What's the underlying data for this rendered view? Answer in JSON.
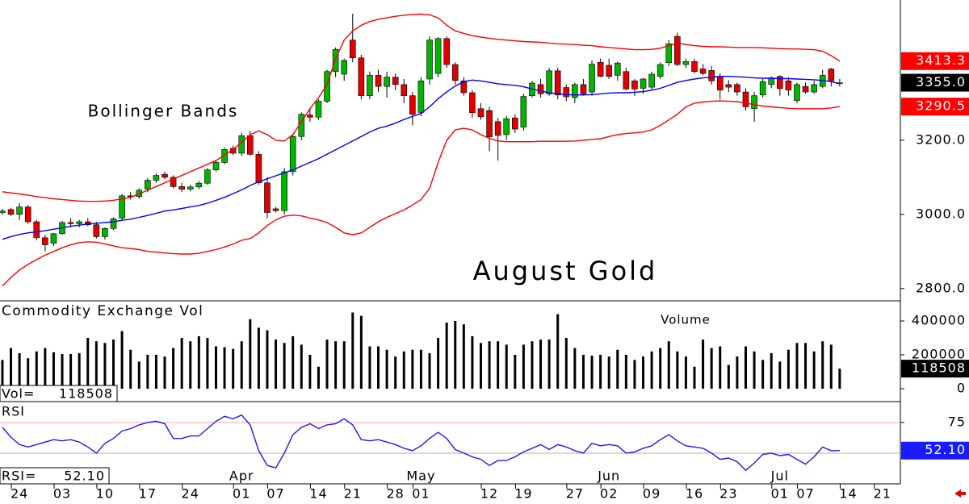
{
  "chart_data": [
    {
      "type": "candlestick",
      "title": "August Gold",
      "annotation": "Bollinger Bands",
      "up_color": "#00b400",
      "down_color": "#e00000",
      "open": [
        3005,
        3013,
        3000,
        3020,
        2980,
        2937,
        2922,
        2948,
        2978,
        2975,
        2980,
        2972,
        2940,
        2962,
        2990,
        3050,
        3048,
        3068,
        3092,
        3108,
        3100,
        3075,
        3068,
        3074,
        3084,
        3120,
        3140,
        3178,
        3165,
        3212,
        3162,
        3085,
        3015,
        3010,
        3115,
        3210,
        3268,
        3262,
        3305,
        3385,
        3378,
        3470,
        3422,
        3320,
        3375,
        3345,
        3370,
        3350,
        3320,
        3275,
        3365,
        3380,
        3474,
        3404,
        3360,
        3328,
        3285,
        3280,
        3250,
        3215,
        3260,
        3235,
        3320,
        3350,
        3325,
        3387,
        3342,
        3315,
        3350,
        3330,
        3410,
        3402,
        3375,
        3385,
        3360,
        3340,
        3343,
        3372,
        3409,
        3480,
        3404,
        3412,
        3392,
        3388,
        3372,
        3350,
        3350,
        3330,
        3285,
        3322,
        3350,
        3372,
        3360,
        3307,
        3345,
        3330,
        3345,
        3392,
        3355
      ],
      "high": [
        3015,
        3018,
        3030,
        3025,
        2985,
        2945,
        2950,
        2982,
        2990,
        2985,
        2990,
        2980,
        2965,
        2992,
        3055,
        3060,
        3070,
        3098,
        3110,
        3115,
        3105,
        3085,
        3080,
        3090,
        3125,
        3145,
        3180,
        3185,
        3220,
        3225,
        3170,
        3100,
        3020,
        3125,
        3215,
        3275,
        3285,
        3310,
        3390,
        3450,
        3420,
        3541,
        3430,
        3385,
        3390,
        3385,
        3380,
        3365,
        3330,
        3370,
        3480,
        3478,
        3480,
        3410,
        3370,
        3335,
        3300,
        3290,
        3260,
        3265,
        3270,
        3325,
        3360,
        3365,
        3395,
        3395,
        3350,
        3355,
        3365,
        3415,
        3420,
        3420,
        3412,
        3395,
        3365,
        3368,
        3385,
        3410,
        3470,
        3490,
        3420,
        3420,
        3405,
        3400,
        3380,
        3362,
        3355,
        3340,
        3330,
        3365,
        3372,
        3375,
        3370,
        3355,
        3355,
        3360,
        3390,
        3395,
        3365
      ],
      "low": [
        2998,
        2996,
        2985,
        2975,
        2930,
        2900,
        2915,
        2945,
        2965,
        2965,
        2968,
        2935,
        2932,
        2958,
        2985,
        3040,
        3042,
        3060,
        3085,
        3095,
        3070,
        3060,
        3062,
        3068,
        3080,
        3115,
        3135,
        3160,
        3158,
        3158,
        3080,
        2990,
        3005,
        3000,
        3105,
        3200,
        3250,
        3255,
        3300,
        3370,
        3360,
        3410,
        3310,
        3310,
        3330,
        3315,
        3335,
        3300,
        3240,
        3265,
        3350,
        3370,
        3395,
        3350,
        3320,
        3260,
        3255,
        3170,
        3145,
        3200,
        3220,
        3225,
        3315,
        3315,
        3320,
        3310,
        3305,
        3300,
        3320,
        3320,
        3370,
        3365,
        3360,
        3335,
        3320,
        3325,
        3335,
        3365,
        3400,
        3400,
        3395,
        3380,
        3375,
        3350,
        3310,
        3330,
        3320,
        3280,
        3250,
        3315,
        3340,
        3320,
        3320,
        3300,
        3325,
        3325,
        3340,
        3345,
        3345
      ],
      "close": [
        3009,
        3000,
        3020,
        2980,
        2937,
        2918,
        2948,
        2978,
        2975,
        2980,
        2972,
        2940,
        2962,
        2988,
        3050,
        3048,
        3065,
        3092,
        3105,
        3100,
        3075,
        3068,
        3074,
        3084,
        3120,
        3140,
        3175,
        3165,
        3212,
        3162,
        3085,
        3005,
        3010,
        3115,
        3210,
        3270,
        3262,
        3305,
        3385,
        3445,
        3415,
        3422,
        3320,
        3375,
        3345,
        3370,
        3350,
        3320,
        3270,
        3360,
        3470,
        3474,
        3404,
        3361,
        3328,
        3274,
        3263,
        3209,
        3213,
        3258,
        3230,
        3318,
        3354,
        3325,
        3387,
        3322,
        3317,
        3350,
        3325,
        3405,
        3372,
        3372,
        3408,
        3338,
        3338,
        3365,
        3378,
        3404,
        3460,
        3404,
        3412,
        3385,
        3380,
        3360,
        3335,
        3343,
        3330,
        3290,
        3320,
        3358,
        3368,
        3339,
        3335,
        3350,
        3330,
        3350,
        3375,
        3360,
        3355
      ],
      "series": [
        {
          "color": "#ff0000",
          "values": [
            3061,
            3058,
            3055,
            3052,
            3048,
            3045,
            3042,
            3040,
            3038,
            3036,
            3035,
            3035,
            3036,
            3038,
            3042,
            3046,
            3055,
            3065,
            3075,
            3085,
            3095,
            3105,
            3115,
            3125,
            3135,
            3145,
            3160,
            3175,
            3195,
            3215,
            3225,
            3215,
            3200,
            3198,
            3215,
            3250,
            3285,
            3315,
            3350,
            3420,
            3470,
            3495,
            3510,
            3520,
            3526,
            3530,
            3534,
            3537,
            3539,
            3540,
            3538,
            3530,
            3510,
            3495,
            3488,
            3482,
            3478,
            3475,
            3472,
            3470,
            3468,
            3466,
            3465,
            3464,
            3462,
            3460,
            3459,
            3458,
            3456,
            3455,
            3452,
            3450,
            3448,
            3446,
            3444,
            3444,
            3445,
            3448,
            3455,
            3462,
            3458,
            3455,
            3453,
            3452,
            3452,
            3451,
            3450,
            3450,
            3450,
            3449,
            3448,
            3447,
            3446,
            3446,
            3445,
            3444,
            3440,
            3428,
            3413.3
          ]
        },
        {
          "color": "#0000ff",
          "values": [
            2933,
            2940,
            2946,
            2950,
            2953,
            2956,
            2960,
            2964,
            2968,
            2971,
            2974,
            2976,
            2978,
            2980,
            2984,
            2987,
            2992,
            2997,
            3003,
            3009,
            3012,
            3016,
            3020,
            3024,
            3030,
            3038,
            3046,
            3056,
            3066,
            3078,
            3088,
            3096,
            3104,
            3112,
            3120,
            3130,
            3140,
            3150,
            3162,
            3174,
            3186,
            3198,
            3210,
            3222,
            3232,
            3238,
            3246,
            3256,
            3264,
            3272,
            3290,
            3312,
            3330,
            3346,
            3358,
            3362,
            3360,
            3356,
            3352,
            3350,
            3348,
            3344,
            3338,
            3333,
            3328,
            3325,
            3323,
            3322,
            3322,
            3323,
            3325,
            3327,
            3328,
            3328,
            3329,
            3331,
            3335,
            3340,
            3348,
            3356,
            3361,
            3365,
            3368,
            3370,
            3372,
            3372,
            3371,
            3370,
            3368,
            3367,
            3367,
            3366,
            3366,
            3365,
            3364,
            3363,
            3361,
            3358,
            3352
          ]
        },
        {
          "color": "#ff0000",
          "values": [
            2807,
            2830,
            2850,
            2865,
            2878,
            2890,
            2900,
            2910,
            2918,
            2924,
            2926,
            2925,
            2920,
            2915,
            2910,
            2908,
            2905,
            2900,
            2898,
            2896,
            2894,
            2893,
            2893,
            2895,
            2900,
            2905,
            2912,
            2920,
            2930,
            2935,
            2950,
            2970,
            2985,
            2995,
            2998,
            2996,
            2990,
            2985,
            2978,
            2965,
            2950,
            2945,
            2950,
            2965,
            2980,
            2992,
            3002,
            3012,
            3025,
            3040,
            3070,
            3140,
            3200,
            3228,
            3232,
            3228,
            3215,
            3205,
            3198,
            3196,
            3196,
            3196,
            3196,
            3197,
            3197,
            3197,
            3197,
            3198,
            3200,
            3202,
            3204,
            3210,
            3215,
            3218,
            3220,
            3222,
            3228,
            3240,
            3255,
            3270,
            3290,
            3300,
            3303,
            3305,
            3306,
            3305,
            3304,
            3300,
            3296,
            3292,
            3290,
            3288,
            3286,
            3285,
            3285,
            3285,
            3285,
            3287,
            3290.5
          ]
        }
      ],
      "last_labels": [
        {
          "value": 3413.3,
          "label": "3413.3",
          "color": "#ff0000"
        },
        {
          "value": 3355,
          "label": "3355.0",
          "color": "#000000"
        },
        {
          "value": 3290.5,
          "label": "3290.5",
          "color": "#ff0000"
        }
      ],
      "ylim": [
        2767,
        3578
      ],
      "yticks": [
        {
          "value": 3200,
          "label": "3200.0"
        },
        {
          "value": 3000,
          "label": "3000.0"
        },
        {
          "value": 2800,
          "label": "2800.0"
        }
      ]
    },
    {
      "type": "bar",
      "title": "Commodity Exchange Vol",
      "subtitle": "Volume",
      "color": "#000000",
      "values": [
        170000,
        240000,
        210000,
        180000,
        220000,
        240000,
        215000,
        205000,
        205000,
        210000,
        300000,
        280000,
        270000,
        290000,
        340000,
        230000,
        160000,
        200000,
        200000,
        190000,
        240000,
        300000,
        280000,
        310000,
        300000,
        250000,
        245000,
        235000,
        280000,
        410000,
        360000,
        345000,
        290000,
        270000,
        310000,
        260000,
        200000,
        130000,
        290000,
        280000,
        280000,
        450000,
        430000,
        250000,
        250000,
        230000,
        190000,
        220000,
        230000,
        230000,
        210000,
        300000,
        390000,
        400000,
        380000,
        310000,
        270000,
        280000,
        280000,
        260000,
        200000,
        260000,
        280000,
        290000,
        290000,
        440000,
        300000,
        240000,
        200000,
        195000,
        200000,
        190000,
        230000,
        200000,
        170000,
        190000,
        220000,
        240000,
        280000,
        220000,
        190000,
        130000,
        290000,
        240000,
        250000,
        140000,
        190000,
        250000,
        220000,
        170000,
        210000,
        160000,
        230000,
        270000,
        270000,
        220000,
        280000,
        260000,
        118508
      ],
      "last_label": {
        "value": 118508,
        "color": "#000000"
      },
      "readout": {
        "label": "Vol=",
        "value": 118508
      },
      "ylim": [
        -76000,
        519000
      ],
      "yticks": [
        400000,
        200000,
        0
      ]
    },
    {
      "type": "line",
      "title": "RSI",
      "color": "#1a1aff",
      "values": [
        71,
        63,
        57,
        55,
        57,
        59,
        61,
        60,
        61,
        59,
        55,
        50,
        58,
        62,
        68,
        70,
        73,
        75,
        76,
        74,
        62,
        62,
        64,
        64,
        70,
        76,
        80,
        78,
        81,
        73,
        52,
        40,
        38,
        50,
        65,
        71,
        74,
        70,
        73,
        74,
        78,
        73,
        61,
        60,
        61,
        59,
        57,
        54,
        52,
        56,
        62,
        67,
        62,
        53,
        50,
        47,
        45,
        40,
        44,
        44,
        47,
        51,
        54,
        57,
        53,
        57,
        55,
        52,
        50,
        58,
        56,
        57,
        56,
        50,
        51,
        54,
        56,
        61,
        65,
        60,
        56,
        55,
        54,
        50,
        45,
        46,
        43,
        36,
        42,
        49,
        50,
        48,
        49,
        45,
        41,
        47,
        55,
        52,
        52.1
      ],
      "last_label": {
        "value": 52.1,
        "label": "52.10",
        "color": "#1a1aff"
      },
      "readout": {
        "label": "RSI=",
        "value": {
          "value": 52.1,
          "label": "52.10"
        }
      },
      "ylim": [
        25,
        92
      ],
      "yticks": [
        75
      ],
      "tick_line_color": "#ffaaaa",
      "midline": 50,
      "midline_color": "#b0b0b0",
      "xlim": [
        -0.28,
        105.1
      ],
      "xticks": [
        {
          "value": 2,
          "label": "24"
        },
        {
          "value": 7,
          "label": "03"
        },
        {
          "value": 12,
          "label": "10"
        },
        {
          "value": 17,
          "label": "17"
        },
        {
          "value": 22,
          "label": "24"
        },
        {
          "value": 28,
          "label": "01"
        },
        {
          "value": 32,
          "label": "07"
        },
        {
          "value": 37,
          "label": "14"
        },
        {
          "value": 41,
          "label": "21"
        },
        {
          "value": 46,
          "label": "28"
        },
        {
          "value": 49,
          "label": "01"
        },
        {
          "value": 57,
          "label": "12"
        },
        {
          "value": 61,
          "label": "19"
        },
        {
          "value": 67,
          "label": "27"
        },
        {
          "value": 71,
          "label": "02"
        },
        {
          "value": 76,
          "label": "09"
        },
        {
          "value": 81,
          "label": "16"
        },
        {
          "value": 85,
          "label": "23"
        },
        {
          "value": 91,
          "label": "01"
        },
        {
          "value": 94,
          "label": "07"
        },
        {
          "value": 99,
          "label": "14"
        },
        {
          "value": 103,
          "label": "21"
        }
      ],
      "month_labels": [
        {
          "value": 28,
          "label": "Apr"
        },
        {
          "value": 49,
          "label": "May"
        },
        {
          "value": 71,
          "label": "Jun"
        },
        {
          "value": 91,
          "label": "Jul"
        }
      ]
    }
  ]
}
